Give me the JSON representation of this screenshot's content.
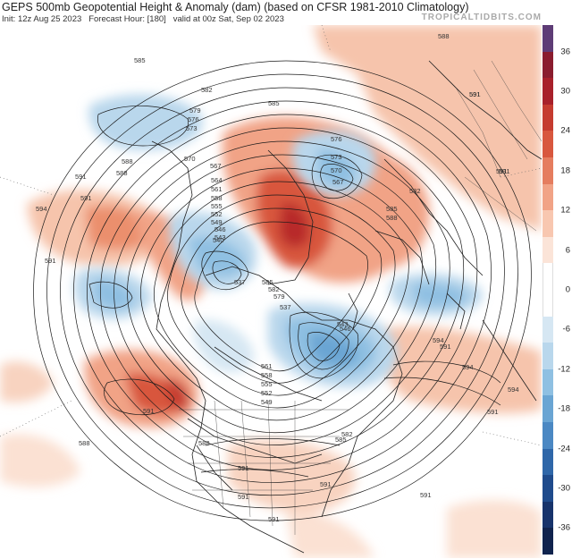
{
  "header": {
    "title": "GEPS 500mb Geopotential Height & Anomaly (dam) (based on CFSR 1981-2010 Climatology)",
    "init": "Init: 12z Aug 25 2023",
    "forecast_hour": "Forecast Hour: [180]",
    "valid": "valid at 00z Sat, Sep 02 2023",
    "brand": "TROPICALTIDBITS.COM"
  },
  "colorbar": {
    "labels": [
      "36",
      "30",
      "24",
      "18",
      "12",
      "6",
      "0",
      "-6",
      "-12",
      "-18",
      "-24",
      "-30",
      "-36"
    ],
    "colors": [
      "#5e3c76",
      "#8a1c2e",
      "#a8202a",
      "#c53b2f",
      "#d8573e",
      "#e57d5f",
      "#f1a386",
      "#f8c7b0",
      "#fbe4d8",
      "#ffffff",
      "#ffffff",
      "#d6e7f3",
      "#b9d7ec",
      "#8fc0e2",
      "#6aa5d3",
      "#4b88c3",
      "#2f67a9",
      "#1f4b8c",
      "#17336b",
      "#10234d"
    ]
  },
  "map": {
    "contour_labels": [
      "585",
      "582",
      "579",
      "576",
      "573",
      "570",
      "567",
      "564",
      "561",
      "558",
      "555",
      "552",
      "549",
      "546",
      "543",
      "540",
      "537",
      "591",
      "588",
      "594",
      "591",
      "588",
      "585",
      "591",
      "582",
      "585",
      "588",
      "591",
      "591",
      "594",
      "591",
      "585",
      "582",
      "579",
      "576",
      "573",
      "570",
      "567",
      "561",
      "558",
      "555",
      "552",
      "549",
      "546",
      "543",
      "537",
      "591",
      "588",
      "585",
      "582",
      "591",
      "588",
      "591",
      "591",
      "591",
      "594",
      "594",
      "591",
      "588",
      "591",
      "591",
      "591"
    ]
  }
}
